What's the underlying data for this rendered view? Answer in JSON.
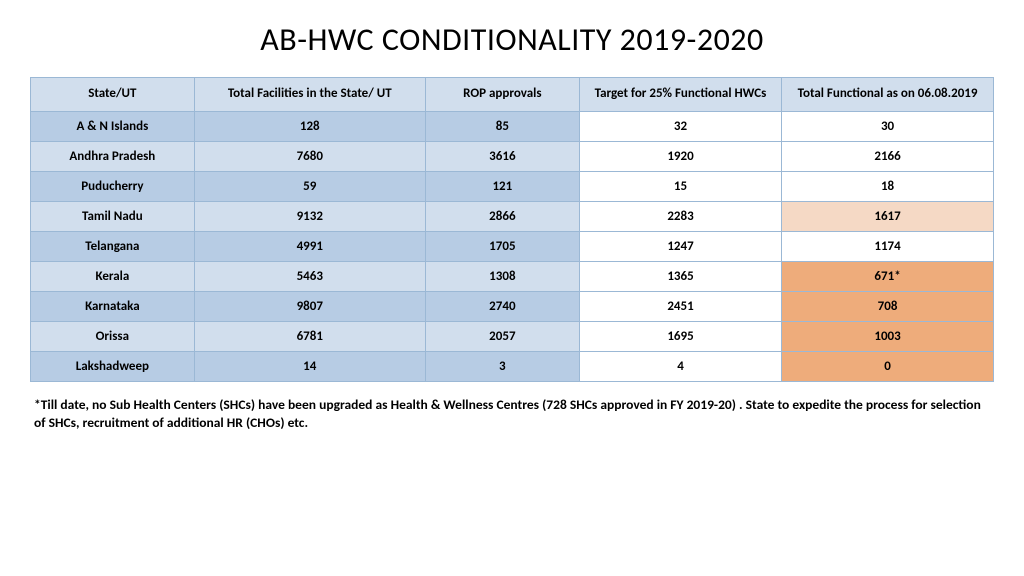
{
  "title": "AB-HWC CONDITIONALITY 2019-2020",
  "columns": [
    "State/UT",
    "Total Facilities in the State/ UT",
    "ROP approvals",
    "Target for 25% Functional HWCs",
    "Total Functional as on 06.08.2019"
  ],
  "rows": [
    {
      "state": "A & N Islands",
      "total": "128",
      "rop": "85",
      "target": "32",
      "func": "30",
      "func_hl": null
    },
    {
      "state": "Andhra Pradesh",
      "total": "7680",
      "rop": "3616",
      "target": "1920",
      "func": "2166",
      "func_hl": null
    },
    {
      "state": "Puducherry",
      "total": "59",
      "rop": "121",
      "target": "15",
      "func": "18",
      "func_hl": null
    },
    {
      "state": "Tamil Nadu",
      "total": "9132",
      "rop": "2866",
      "target": "2283",
      "func": "1617",
      "func_hl": "light"
    },
    {
      "state": "Telangana",
      "total": "4991",
      "rop": "1705",
      "target": "1247",
      "func": "1174",
      "func_hl": null
    },
    {
      "state": "Kerala",
      "total": "5463",
      "rop": "1308",
      "target": "1365",
      "func": "671*",
      "func_hl": "dark"
    },
    {
      "state": "Karnataka",
      "total": "9807",
      "rop": "2740",
      "target": "2451",
      "func": "708",
      "func_hl": "dark"
    },
    {
      "state": "Orissa",
      "total": "6781",
      "rop": "2057",
      "target": "1695",
      "func": "1003",
      "func_hl": "dark"
    },
    {
      "state": "Lakshadweep",
      "total": "14",
      "rop": "3",
      "target": "4",
      "func": "0",
      "func_hl": "dark"
    }
  ],
  "footnote": "*Till date, no Sub Health Centers (SHCs) have been upgraded as Health & Wellness Centres (728 SHCs approved in FY 2019-20) . State to expedite the process for selection of SHCs, recruitment of additional HR (CHOs) etc.",
  "col_widths": [
    "17%",
    "24%",
    "16%",
    "21%",
    "22%"
  ],
  "colors": {
    "header_bg": "#d1deed",
    "dark_blue": "#b7cce4",
    "light_blue": "#d1deed",
    "white": "#ffffff",
    "hl_light": "#f5d9c5",
    "hl_dark": "#eeac7b",
    "border": "#9bb8d5"
  }
}
